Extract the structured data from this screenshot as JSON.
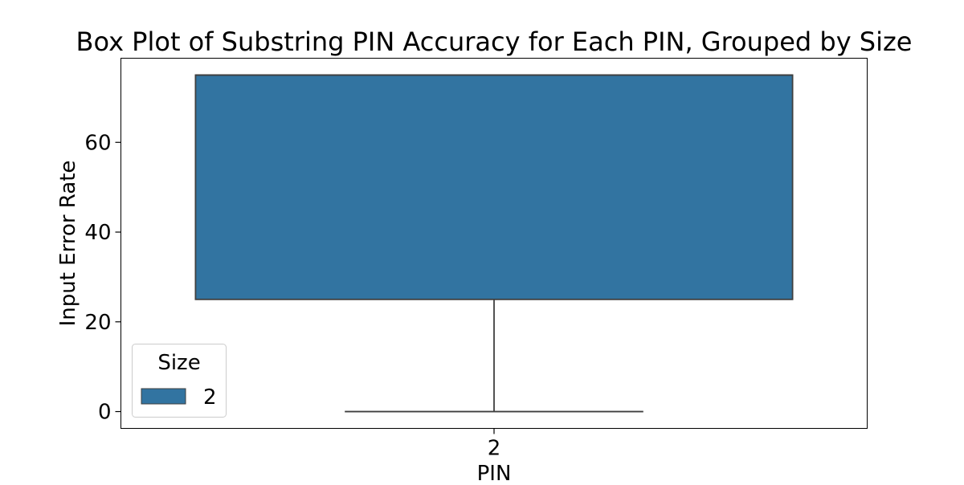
{
  "chart_data": {
    "type": "box",
    "title": "Box Plot of Substring PIN Accuracy for Each PIN, Grouped by Size",
    "xlabel": "PIN",
    "ylabel": "Input Error Rate",
    "categories": [
      "2"
    ],
    "yticks": [
      0,
      20,
      40,
      60
    ],
    "ylim": [
      -3.75,
      78.75
    ],
    "grid": false,
    "legend": {
      "title": "Size",
      "placement": "lower-left",
      "entries": [
        {
          "label": "2",
          "color": "#3274a1"
        }
      ]
    },
    "series": [
      {
        "name": "2",
        "color": "#3274a1",
        "boxes": [
          {
            "category": "2",
            "whisker_low": 0,
            "q1": 25,
            "median": 75,
            "q3": 75,
            "whisker_high": 75
          }
        ]
      }
    ]
  }
}
